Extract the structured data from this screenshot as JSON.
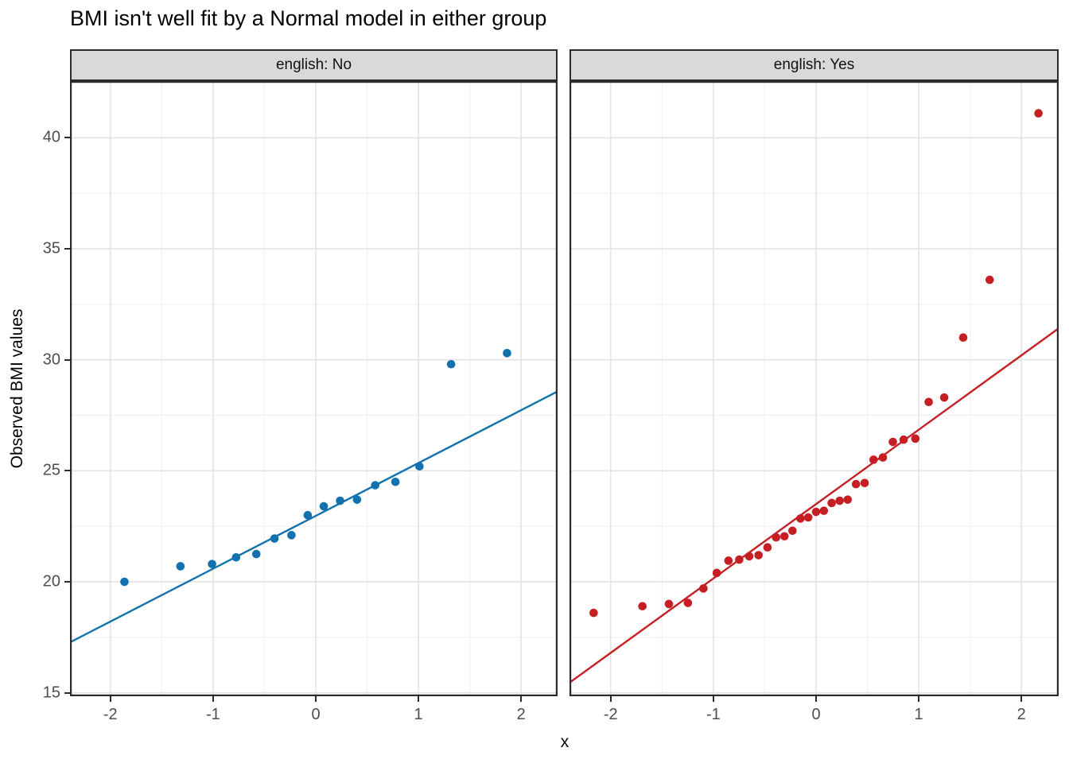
{
  "title": "BMI isn't well fit by a Normal model in either group",
  "chart_data": {
    "type": "scatter",
    "subtype": "qq-plot-faceted",
    "title": "BMI isn't well fit by a Normal model in either group",
    "xlabel": "x",
    "ylabel": "Observed BMI values",
    "x_ticks": [
      -2,
      -1,
      0,
      1,
      2
    ],
    "y_ticks": [
      15,
      20,
      25,
      30,
      35,
      40
    ],
    "x_minor": [
      -1.5,
      -0.5,
      0.5,
      1.5
    ],
    "y_minor": [
      17.5,
      22.5,
      27.5,
      32.5,
      37.5,
      42.5
    ],
    "xlim": [
      -2.39,
      2.36
    ],
    "ylim": [
      14.85,
      42.55
    ],
    "grid": "major+minor",
    "legend": "none",
    "facets": [
      {
        "label": "english: No",
        "color": "#1272AE",
        "n": 16,
        "line": {
          "intercept": 22.97,
          "slope": 2.38
        },
        "points": [
          [
            -1.863,
            20.0
          ],
          [
            -1.318,
            20.7
          ],
          [
            -1.01,
            20.8
          ],
          [
            -0.776,
            21.1
          ],
          [
            -0.579,
            21.25
          ],
          [
            -0.402,
            21.95
          ],
          [
            -0.237,
            22.1
          ],
          [
            -0.078,
            23.0
          ],
          [
            0.078,
            23.4
          ],
          [
            0.237,
            23.65
          ],
          [
            0.402,
            23.7
          ],
          [
            0.579,
            24.35
          ],
          [
            0.776,
            24.5
          ],
          [
            1.01,
            25.2
          ],
          [
            1.318,
            29.8
          ],
          [
            1.863,
            30.3
          ]
        ]
      },
      {
        "label": "english: Yes",
        "color": "#C51F24",
        "n": 33,
        "line": {
          "intercept": 23.5,
          "slope": 3.35
        },
        "points": [
          [
            -2.166,
            18.6
          ],
          [
            -1.691,
            18.9
          ],
          [
            -1.433,
            19.0
          ],
          [
            -1.248,
            19.05
          ],
          [
            -1.097,
            19.7
          ],
          [
            -0.967,
            20.4
          ],
          [
            -0.853,
            20.95
          ],
          [
            -0.748,
            21.0
          ],
          [
            -0.651,
            21.15
          ],
          [
            -0.56,
            21.2
          ],
          [
            -0.473,
            21.55
          ],
          [
            -0.389,
            22.0
          ],
          [
            -0.308,
            22.05
          ],
          [
            -0.23,
            22.3
          ],
          [
            -0.152,
            22.85
          ],
          [
            -0.076,
            22.9
          ],
          [
            0.0,
            23.15
          ],
          [
            0.076,
            23.2
          ],
          [
            0.152,
            23.55
          ],
          [
            0.23,
            23.65
          ],
          [
            0.308,
            23.7
          ],
          [
            0.389,
            24.4
          ],
          [
            0.473,
            24.45
          ],
          [
            0.56,
            25.5
          ],
          [
            0.651,
            25.6
          ],
          [
            0.748,
            26.3
          ],
          [
            0.853,
            26.4
          ],
          [
            0.967,
            26.45
          ],
          [
            1.097,
            28.1
          ],
          [
            1.248,
            28.3
          ],
          [
            1.433,
            31.0
          ],
          [
            1.691,
            33.6
          ],
          [
            2.166,
            41.1
          ]
        ]
      }
    ],
    "colors": {
      "strip_bg": "#D9D9D9",
      "panel_bg": "#FFFFFF",
      "panel_border": "#2B2B2B",
      "grid_major": "#E4E4E4",
      "grid_minor": "#F1F1F1",
      "axis_text": "#4D4D4D",
      "blue": "#1272AE",
      "red": "#C51F24"
    }
  }
}
